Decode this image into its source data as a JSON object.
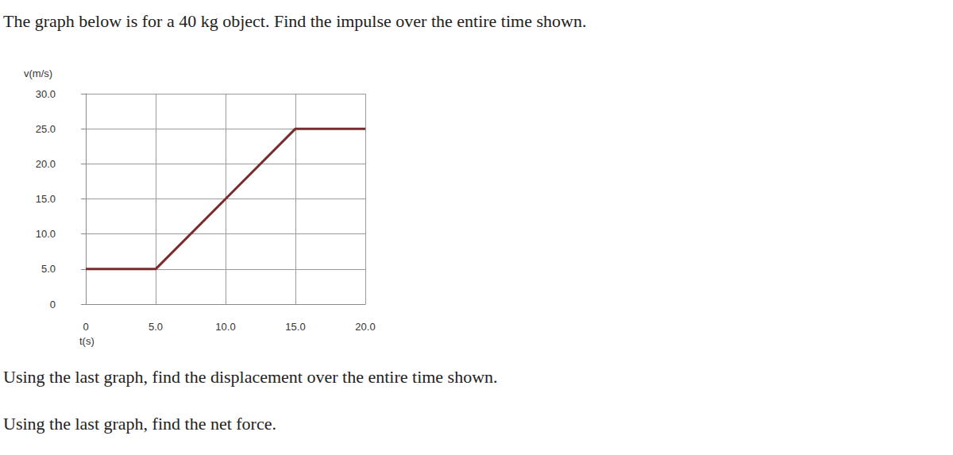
{
  "prompt": "The graph below is for a 40 kg object. Find the impulse over the entire time shown.",
  "chart_data": {
    "type": "line",
    "x_label": "t(s)",
    "y_label": "v(m/s)",
    "x": [
      0,
      5,
      10,
      15,
      20
    ],
    "series": [
      {
        "name": "v",
        "color": "#7a2b2b",
        "values": [
          5,
          5,
          15,
          25,
          25
        ],
        "line_style": "solid",
        "marker": "none"
      }
    ],
    "xlim": [
      0,
      20
    ],
    "xticks": [
      0,
      {
        "value": 5,
        "label": "5.0"
      },
      {
        "value": 10,
        "label": "10.0"
      },
      {
        "value": 15,
        "label": "15.0"
      },
      {
        "value": 20,
        "label": "20.0"
      }
    ],
    "ylim": [
      0,
      30
    ],
    "yticks": [
      0,
      {
        "value": 5,
        "label": "5.0"
      },
      {
        "value": 10,
        "label": "10.0"
      },
      {
        "value": 15,
        "label": "15.0"
      },
      {
        "value": 20,
        "label": "20.0"
      },
      {
        "value": 25,
        "label": "25.0"
      },
      {
        "value": 30,
        "label": "30.0"
      }
    ],
    "grid": true
  },
  "questions": [
    "Using the last graph, find the displacement over the entire time shown.",
    "Using the last graph, find the net force."
  ]
}
